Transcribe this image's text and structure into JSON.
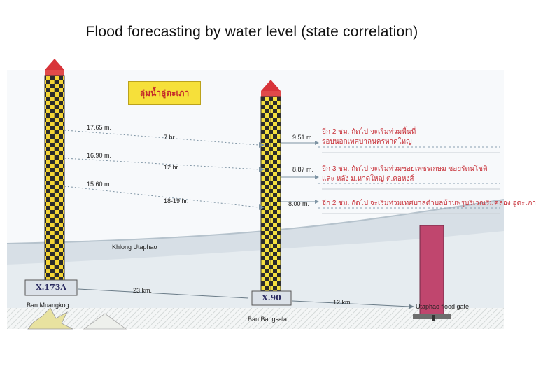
{
  "title": "Flood forecasting by water level (state correlation)",
  "banner": "ลุ่มน้ำอู่ตะเภา",
  "levels_x173a": [
    "17.65 m.",
    "16.90 m.",
    "15.60 m."
  ],
  "travel_times": [
    "7 hr.",
    "12 hr.",
    "18-19 hr."
  ],
  "levels_x90": [
    "9.51 m.",
    "8.87 m.",
    "8.00 m."
  ],
  "notes": [
    "อีก 2 ชม. ถัดไป จะเริ่มท่วมพื้นที่",
    "รอบนอกเทศบาลนครหาดใหญ่",
    "อีก 3 ชม. ถัดไป จะเริ่มท่วมซอยเพชรเกษม ซอยรัตนโชติ",
    "และ หลัง ม.หาดใหญ่ ต.คอหงส์",
    "อีก 2 ชม. ถัดไป จะเริ่มท่วมเทศบาลตำบลบ้านพรุบริเวณริมคลอง อู่ตะเภา"
  ],
  "river": "Khlong Utaphao",
  "stations": {
    "x173a": {
      "code": "X.173A",
      "place": "Ban Muangkog"
    },
    "x90": {
      "code": "X.90",
      "place": "Ban Bangsala"
    }
  },
  "distances": [
    "23 km.",
    "12 km."
  ],
  "gate": "Utaphao flood gate"
}
